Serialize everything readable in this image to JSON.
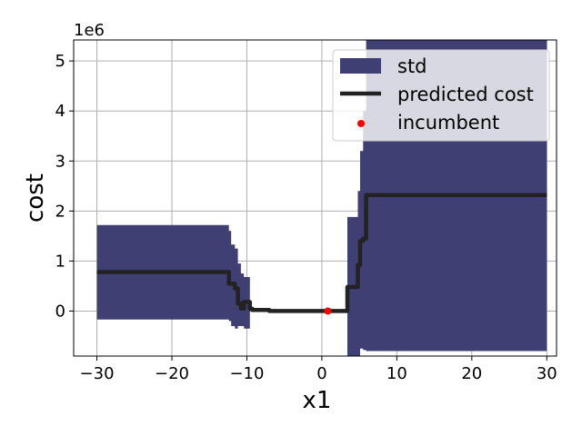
{
  "chart_data": {
    "type": "line",
    "title": "",
    "xlabel": "x1",
    "ylabel": "cost",
    "y_offset_label": "1e6",
    "xlim": [
      -33.1,
      31.3
    ],
    "ylim": [
      -0.9,
      5.42
    ],
    "xticks": [
      -30,
      -20,
      -10,
      0,
      10,
      20,
      30
    ],
    "xtick_labels": [
      "−30",
      "−20",
      "−10",
      "0",
      "10",
      "20",
      "30"
    ],
    "yticks": [
      0,
      1,
      2,
      3,
      4,
      5
    ],
    "ytick_labels": [
      "0",
      "1",
      "2",
      "3",
      "4",
      "5"
    ],
    "grid": true,
    "legend_position": "top-right",
    "colors": {
      "std": "#3f3f73",
      "predicted": "#222222",
      "incumbent": "#ff0000"
    },
    "legend": {
      "std": "std",
      "predicted": "predicted cost",
      "incumbent": "incumbent"
    },
    "series": [
      {
        "name": "predicted cost",
        "x": [
          -30,
          -12.4,
          -12.4,
          -11.6,
          -11.6,
          -11.2,
          -11.2,
          -10.8,
          -10.8,
          -10.4,
          -10.4,
          -9.6,
          -9.6,
          -9.3,
          -9.3,
          -7,
          -7,
          3.4,
          3.4,
          4.8,
          4.8,
          5.1,
          5.1,
          5.5,
          5.5,
          5.9,
          5.9,
          30
        ],
        "y": [
          0.78,
          0.78,
          0.55,
          0.55,
          0.45,
          0.45,
          0.15,
          0.15,
          0.05,
          0.05,
          0.18,
          0.18,
          0.05,
          0.05,
          0.02,
          0.02,
          0.0,
          0.0,
          0.48,
          0.48,
          0.92,
          0.92,
          1.4,
          1.4,
          1.45,
          1.45,
          2.32,
          2.32
        ]
      },
      {
        "name": "std",
        "x": [
          -30,
          -12.4,
          -12.4,
          -12.1,
          -12.1,
          -11.6,
          -11.6,
          -11.2,
          -11.2,
          -10.8,
          -10.8,
          -10.4,
          -10.4,
          -9.6,
          -9.6,
          -9.3,
          -9.3,
          -7,
          -7,
          3.4,
          3.4,
          4.8,
          4.8,
          5.1,
          5.1,
          5.5,
          5.5,
          5.9,
          5.9,
          30
        ],
        "lower": [
          -0.17,
          -0.17,
          -0.2,
          -0.2,
          -0.3,
          -0.3,
          -0.35,
          -0.35,
          -0.3,
          -0.3,
          -0.3,
          -0.3,
          -0.35,
          -0.35,
          0.0,
          0.0,
          0.0,
          0.0,
          0.0,
          0.0,
          -0.9,
          -0.9,
          -0.9,
          -0.9,
          -0.75,
          -0.75,
          -0.78,
          -0.78,
          -0.8,
          -0.8
        ],
        "upper": [
          1.72,
          1.72,
          1.6,
          1.6,
          1.33,
          1.33,
          1.25,
          1.25,
          0.95,
          0.95,
          0.75,
          0.75,
          0.68,
          0.68,
          0.05,
          0.05,
          0.02,
          0.02,
          0.0,
          0.0,
          1.88,
          1.88,
          2.4,
          2.4,
          3.2,
          3.2,
          4.0,
          4.0,
          5.42,
          5.42
        ]
      },
      {
        "name": "incumbent",
        "points": [
          {
            "x": 0.8,
            "y": 0.0
          }
        ]
      }
    ]
  }
}
